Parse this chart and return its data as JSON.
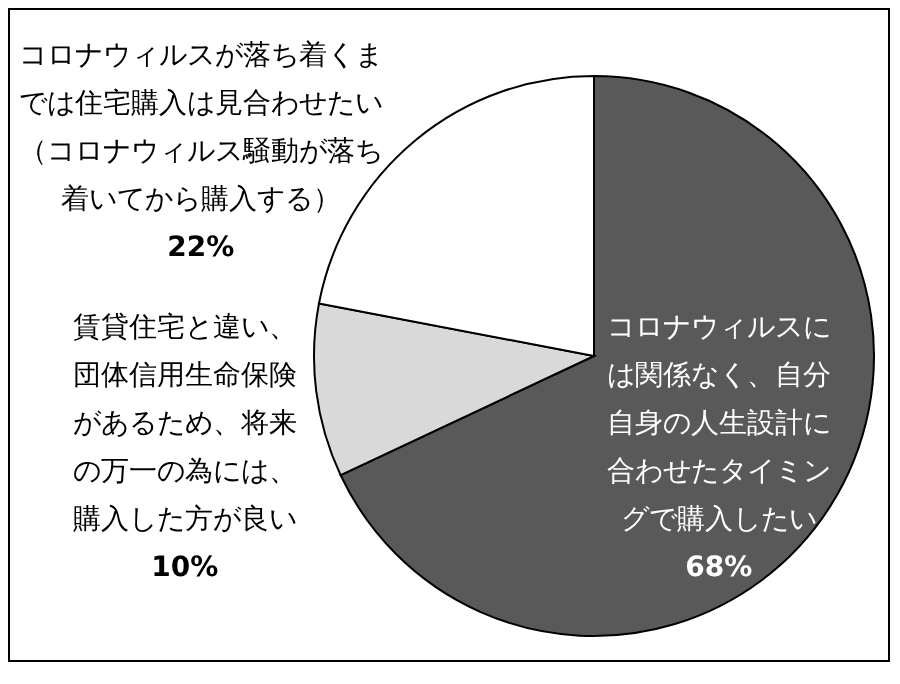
{
  "chart_data": {
    "type": "pie",
    "categories": [
      "コロナウィルスには関係なく、自分自身の人生設計に合わせたタイミングで購入したい",
      "賃貸住宅と違い、団体信用生命保険があるため、将来の万一の為には、購入した方が良い",
      "コロナウィルスが落ち着くまでは住宅購入は見合わせたい（コロナウィルス騒動が落ち着いてから購入する）"
    ],
    "values": [
      68,
      10,
      22
    ],
    "colors": [
      "#595959",
      "#d9d9d9",
      "#ffffff"
    ],
    "value_labels": [
      "68%",
      "10%",
      "22%"
    ]
  }
}
